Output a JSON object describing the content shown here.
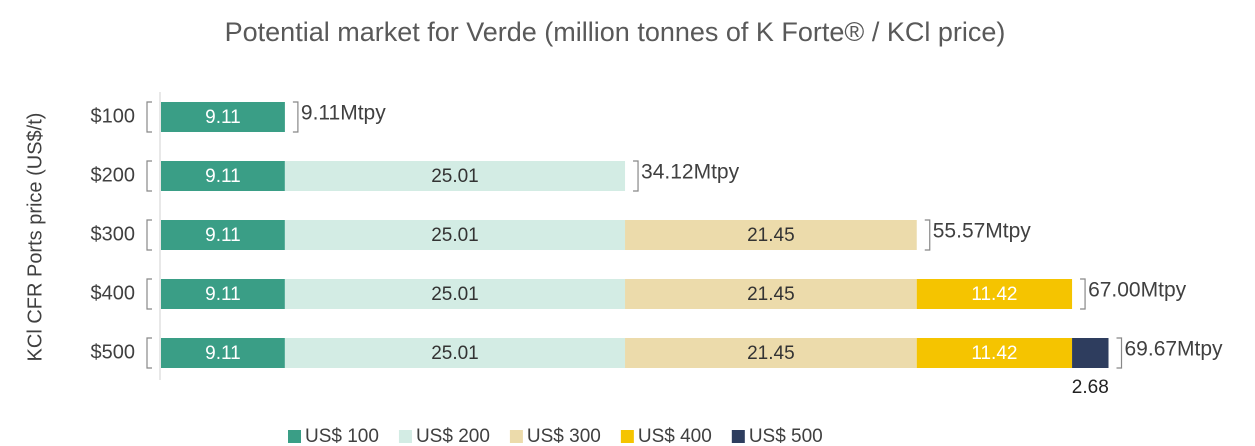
{
  "chart_data": {
    "type": "stacked_bar_horizontal",
    "title": "Potential market for Verde (million tonnes of K Forte® / KCl price)",
    "y_axis_label": "KCl CFR Ports price (US$/t)",
    "categories": [
      "$100",
      "$200",
      "$300",
      "$400",
      "$500"
    ],
    "series": [
      {
        "name": "US$ 100",
        "color": "#3a9e86",
        "label_color": "#ffffff",
        "values": [
          9.11,
          9.11,
          9.11,
          9.11,
          9.11
        ]
      },
      {
        "name": "US$ 200",
        "color": "#d3ece4",
        "label_color": "#333333",
        "values": [
          null,
          25.01,
          25.01,
          25.01,
          25.01
        ]
      },
      {
        "name": "US$ 300",
        "color": "#ecdbab",
        "label_color": "#333333",
        "values": [
          null,
          null,
          21.45,
          21.45,
          21.45
        ]
      },
      {
        "name": "US$ 400",
        "color": "#f5c400",
        "label_color": "#ffffff",
        "values": [
          null,
          null,
          null,
          11.42,
          11.42
        ]
      },
      {
        "name": "US$ 500",
        "color": "#2e3d5e",
        "label_color": "#333333",
        "values": [
          null,
          null,
          null,
          null,
          2.68
        ]
      }
    ],
    "annotations": [
      "9.11Mtpy",
      "34.12Mtpy",
      "55.57Mtpy",
      "67.00Mtpy",
      "69.67Mtpy"
    ],
    "legend": "bottom"
  }
}
